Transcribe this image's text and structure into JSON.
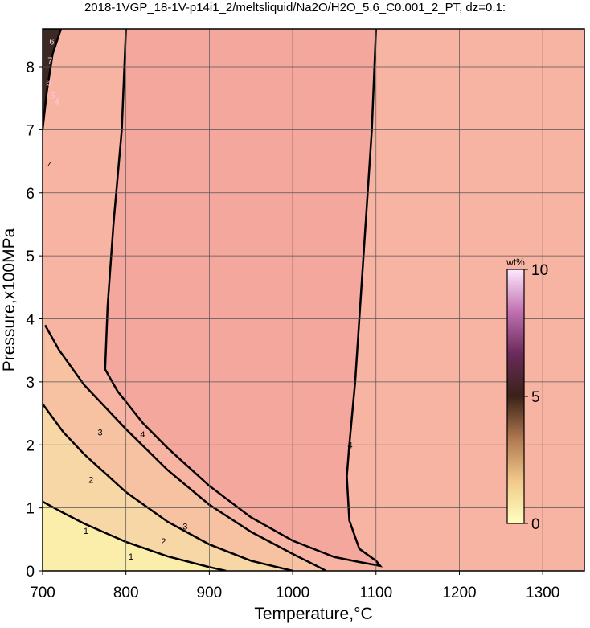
{
  "chart_data": {
    "type": "contour",
    "title": "2018-1VGP_18-1V-p14i1_2/meltsliquid/Na2O/H2O_5.6_C0.001_2_PT, dz=0.1:",
    "x_label": "Temperature,°C",
    "y_label": "Pressure,x100MPa",
    "xlim": [
      700,
      1350
    ],
    "ylim": [
      0,
      8.6
    ],
    "xticks": [
      700,
      800,
      900,
      1000,
      1100,
      1200,
      1300
    ],
    "yticks": [
      0,
      1,
      2,
      3,
      4,
      5,
      6,
      7,
      8
    ],
    "grid": true,
    "background": "#f8b4a3",
    "colorbar": {
      "label": "wt%",
      "lim": [
        0,
        10
      ],
      "ticks": [
        0,
        5,
        10
      ],
      "colors": [
        "#ffffc0",
        "#f2c98a",
        "#b07850",
        "#3a2218",
        "#6a2a5a",
        "#c070b0",
        "#ffe8ff"
      ]
    },
    "contours": [
      {
        "level": 4,
        "fill": "#f4a79d",
        "x": [
          800,
          795,
          785,
          778,
          775,
          790,
          820,
          850,
          900,
          950,
          1000,
          1050,
          1080,
          1105,
          1100,
          1080,
          1068,
          1065,
          1068,
          1075,
          1085,
          1095,
          1100
        ],
        "y": [
          8.6,
          7.0,
          5.5,
          4.2,
          3.2,
          2.85,
          2.35,
          1.95,
          1.35,
          0.85,
          0.48,
          0.22,
          0.14,
          0.08,
          0.16,
          0.35,
          0.8,
          1.5,
          2.0,
          3.0,
          5.0,
          7.0,
          8.6
        ],
        "labels": [
          [
            820,
            2.17
          ],
          [
            1069,
            2.0
          ]
        ]
      },
      {
        "level": 3,
        "fill": "#f6c2a2",
        "corner": "bottom-left",
        "x": [
          703,
          720,
          750,
          800,
          850,
          900,
          950,
          1000,
          1030,
          1040
        ],
        "y": [
          3.9,
          3.5,
          2.95,
          2.25,
          1.6,
          1.05,
          0.62,
          0.27,
          0.07,
          0
        ],
        "labels": [
          [
            769,
            2.2
          ],
          [
            871,
            0.71
          ]
        ]
      },
      {
        "level": 2,
        "fill": "#f8d7a6",
        "corner": "bottom-left",
        "x": [
          700,
          725,
          750,
          800,
          850,
          900,
          950,
          1000
        ],
        "y": [
          2.65,
          2.2,
          1.85,
          1.25,
          0.78,
          0.42,
          0.16,
          0
        ],
        "labels": [
          [
            758,
            1.45
          ],
          [
            845,
            0.47
          ]
        ]
      },
      {
        "level": 1,
        "fill": "#fbeeaa",
        "corner": "bottom-left",
        "x": [
          700,
          725,
          750,
          800,
          850,
          900,
          920
        ],
        "y": [
          1.1,
          0.92,
          0.75,
          0.46,
          0.23,
          0.06,
          0
        ],
        "labels": [
          [
            752,
            0.64
          ],
          [
            806,
            0.23
          ]
        ]
      },
      {
        "level": 6,
        "fill": "#3a2a22",
        "corner": "top-left",
        "x": [
          700,
          705,
          712,
          722
        ],
        "y": [
          7.0,
          7.6,
          8.2,
          8.6
        ],
        "labels": []
      }
    ],
    "extra_labels": [
      {
        "text": 4,
        "x": 709,
        "y": 6.45
      },
      {
        "text": 6,
        "x": 711,
        "y": 8.4
      },
      {
        "text": 7,
        "x": 709,
        "y": 8.1
      },
      {
        "text": 6,
        "x": 707,
        "y": 7.75
      },
      {
        "text": 5,
        "x": 712,
        "y": 7.55
      },
      {
        "text": 4,
        "x": 717,
        "y": 7.45
      }
    ]
  }
}
